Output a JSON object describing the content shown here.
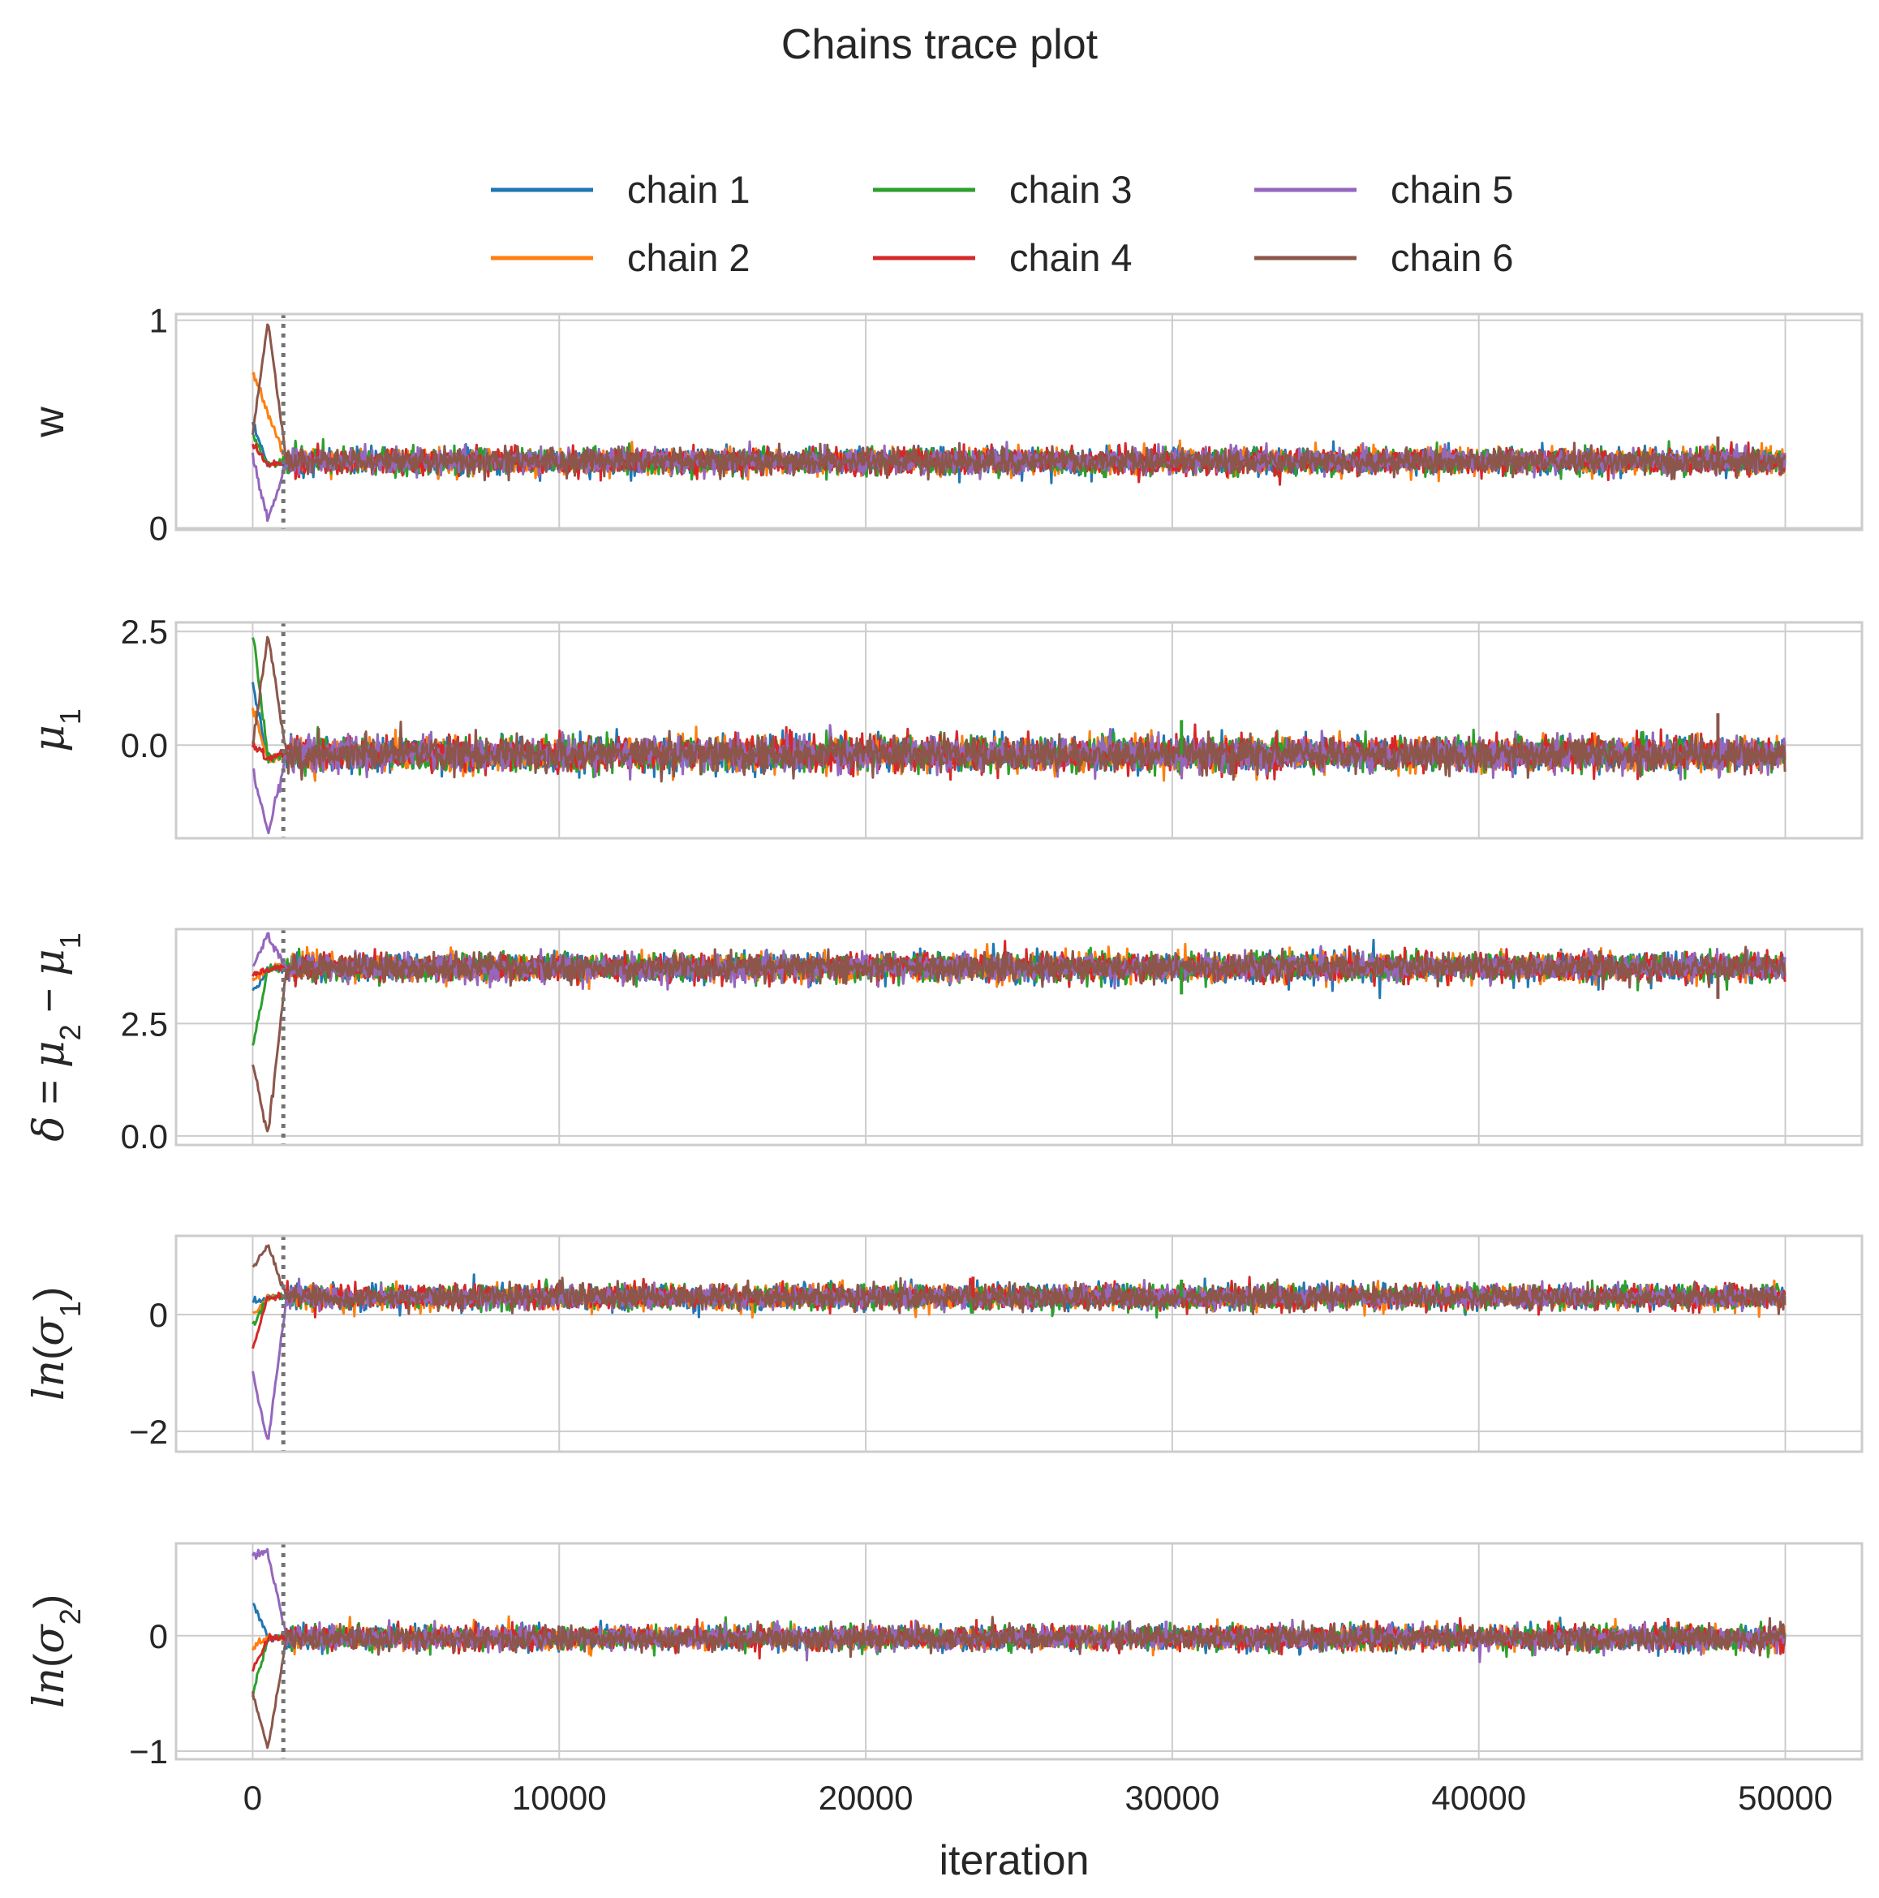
{
  "figure": {
    "title": "Chains trace plot",
    "xlabel": "iteration"
  },
  "chart_data": {
    "type": "line",
    "title": "Chains trace plot",
    "xlabel": "iteration",
    "xlim": [
      -2500,
      52500
    ],
    "xticks": [
      0,
      10000,
      20000,
      30000,
      40000,
      50000
    ],
    "xtick_labels": [
      "0",
      "10000",
      "20000",
      "30000",
      "40000",
      "50000"
    ],
    "burn_in_marker": {
      "x": 1000,
      "style": "dotted",
      "color": "#737373"
    },
    "grid": true,
    "legend": {
      "placement": "top-center",
      "columns": 3
    },
    "n_iterations": 50000,
    "series": [
      {
        "name": "chain 1",
        "color": "#1f77b4"
      },
      {
        "name": "chain 2",
        "color": "#ff7f0e"
      },
      {
        "name": "chain 3",
        "color": "#2ca02c"
      },
      {
        "name": "chain 4",
        "color": "#d62728"
      },
      {
        "name": "chain 5",
        "color": "#9467bd"
      },
      {
        "name": "chain 6",
        "color": "#8c564b"
      }
    ],
    "panels": [
      {
        "id": "w",
        "ylabel": "w",
        "ylim": [
          -0.01,
          1.03
        ],
        "yticks": [
          0,
          1
        ],
        "ytick_labels": [
          "0",
          "1"
        ],
        "stationary": {
          "mean": 0.32,
          "spread": 0.03
        },
        "warmup_start": [
          0.5,
          0.75,
          0.45,
          0.4,
          0.35,
          0.45
        ],
        "warmup_extreme": [
          0.3,
          0.55,
          0.3,
          0.3,
          0.03,
          1.0
        ],
        "spikes": [
          {
            "x": 47800,
            "y": 0.44,
            "chain": 6
          }
        ]
      },
      {
        "id": "mu1",
        "ylabel": "μ1",
        "ylim": [
          -2.05,
          2.7
        ],
        "yticks": [
          0.0,
          2.5
        ],
        "ytick_labels": [
          "0.0",
          "2.5"
        ],
        "stationary": {
          "mean": -0.2,
          "spread": 0.18
        },
        "warmup_start": [
          1.3,
          0.8,
          2.5,
          0.0,
          -0.5,
          0.0
        ],
        "warmup_extreme": [
          -0.3,
          -0.3,
          -0.3,
          -0.3,
          -1.95,
          2.45
        ],
        "spikes": [
          {
            "x": 30300,
            "y": 0.55,
            "chain": 3
          },
          {
            "x": 47800,
            "y": 0.7,
            "chain": 6
          }
        ]
      },
      {
        "id": "delta",
        "ylabel": "δ = μ2 − μ1",
        "ylim": [
          -0.2,
          4.6
        ],
        "yticks": [
          0.0,
          2.5
        ],
        "ytick_labels": [
          "0.0",
          "2.5"
        ],
        "stationary": {
          "mean": 3.75,
          "spread": 0.15
        },
        "warmup_start": [
          3.2,
          3.5,
          2.0,
          3.6,
          3.8,
          1.6
        ],
        "warmup_extreme": [
          3.7,
          3.7,
          3.7,
          3.7,
          4.45,
          0.0
        ],
        "spikes": [
          {
            "x": 30300,
            "y": 3.15,
            "chain": 3
          },
          {
            "x": 47800,
            "y": 3.05,
            "chain": 6
          }
        ]
      },
      {
        "id": "lnsigma1",
        "ylabel": "ln(σ1)",
        "ylim": [
          -2.35,
          1.35
        ],
        "yticks": [
          -2,
          0
        ],
        "ytick_labels": [
          "−2",
          "0"
        ],
        "stationary": {
          "mean": 0.3,
          "spread": 0.1
        },
        "warmup_start": [
          0.2,
          0.0,
          -0.2,
          -0.6,
          -1.0,
          0.8
        ],
        "warmup_extreme": [
          0.3,
          0.3,
          0.3,
          0.3,
          -2.2,
          1.2
        ],
        "spikes": [
          {
            "x": 30300,
            "y": 0.6,
            "chain": 3
          },
          {
            "x": 23500,
            "y": 0.65,
            "chain": 4
          }
        ]
      },
      {
        "id": "lnsigma2",
        "ylabel": "ln(σ2)",
        "ylim": [
          -1.07,
          0.8
        ],
        "yticks": [
          -1,
          0
        ],
        "ytick_labels": [
          "−1",
          "0"
        ],
        "stationary": {
          "mean": -0.02,
          "spread": 0.05
        },
        "warmup_start": [
          0.3,
          -0.1,
          -0.5,
          -0.3,
          0.7,
          -0.5
        ],
        "warmup_extreme": [
          -0.02,
          -0.02,
          -0.02,
          -0.02,
          0.72,
          -0.98
        ],
        "spikes": [
          {
            "x": 29800,
            "y": 0.13,
            "chain": 5
          }
        ]
      }
    ]
  }
}
